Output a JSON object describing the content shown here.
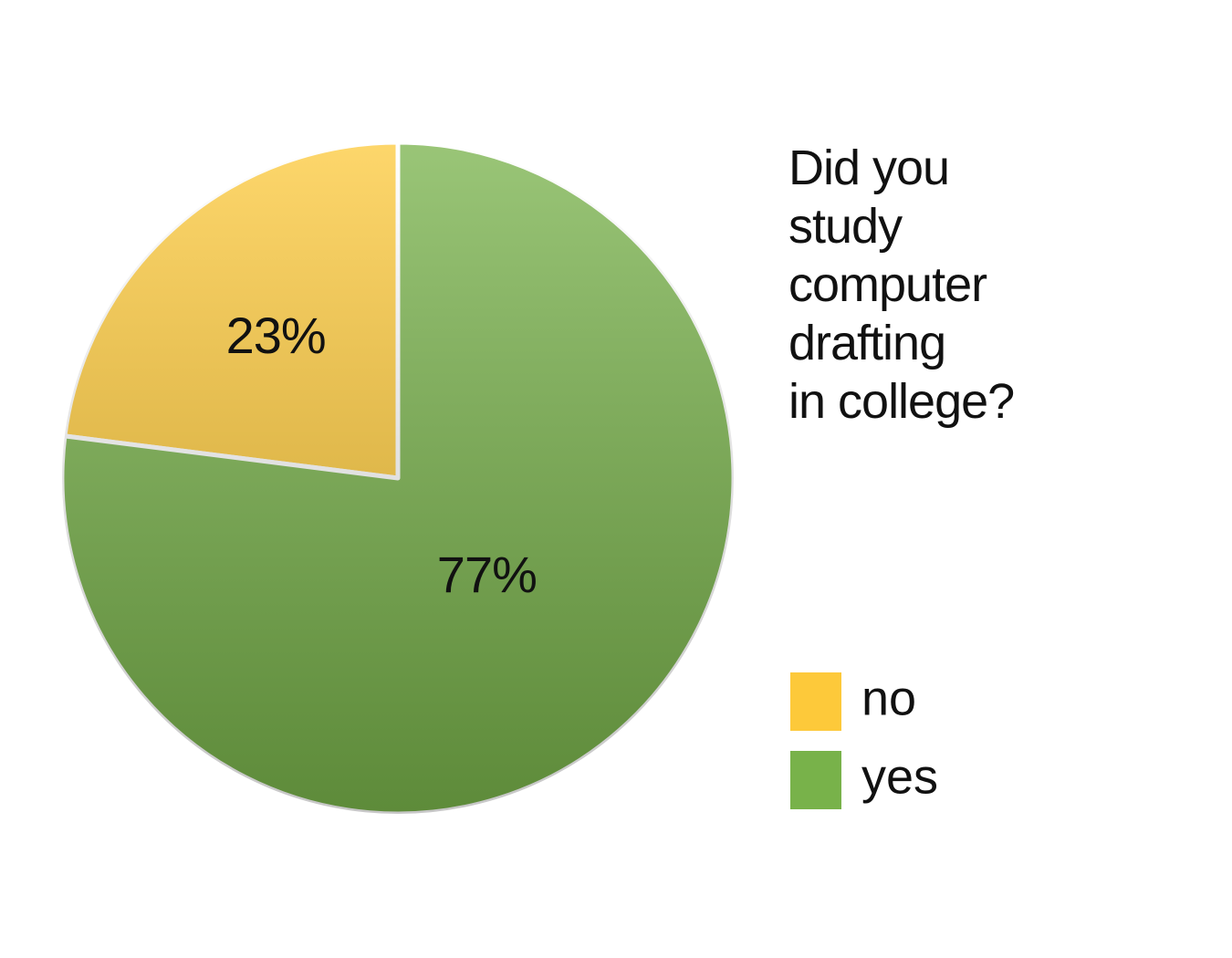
{
  "chart_data": {
    "type": "pie",
    "title": "Did you\nstudy\ncomputer\ndrafting\nin college?",
    "categories": [
      "no",
      "yes"
    ],
    "values": [
      23,
      77
    ],
    "value_labels": [
      "23%",
      "77%"
    ],
    "colors": [
      "#fdc93a",
      "#78b24a"
    ]
  }
}
